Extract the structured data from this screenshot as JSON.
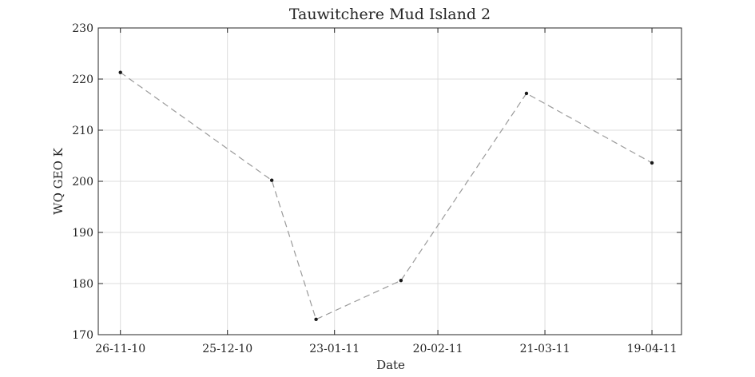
{
  "chart_data": {
    "type": "line",
    "title": "Tauwitchere Mud Island 2",
    "xlabel": "Date",
    "ylabel": "WQ GEO K",
    "x_ticks": [
      {
        "date": "2010-11-26",
        "label": "26-11-10"
      },
      {
        "date": "2010-12-25",
        "label": "25-12-10"
      },
      {
        "date": "2011-01-23",
        "label": "23-01-11"
      },
      {
        "date": "2011-02-20",
        "label": "20-02-11"
      },
      {
        "date": "2011-03-21",
        "label": "21-03-11"
      },
      {
        "date": "2011-04-19",
        "label": "19-04-11"
      }
    ],
    "xlim": [
      "2010-11-20",
      "2011-04-27"
    ],
    "ylim": [
      170,
      230
    ],
    "y_ticks": [
      170,
      180,
      190,
      200,
      210,
      220,
      230
    ],
    "grid": true,
    "series": [
      {
        "color": "#9a9a9a",
        "marker_color": "#1a1a1a",
        "line_style": "dashed",
        "points": [
          {
            "x": "2010-11-26",
            "y": 221.3
          },
          {
            "x": "2011-01-06",
            "y": 200.2
          },
          {
            "x": "2011-01-18",
            "y": 173.0
          },
          {
            "x": "2011-02-10",
            "y": 180.6
          },
          {
            "x": "2011-03-16",
            "y": 217.2
          },
          {
            "x": "2011-04-19",
            "y": 203.6
          }
        ]
      }
    ]
  }
}
